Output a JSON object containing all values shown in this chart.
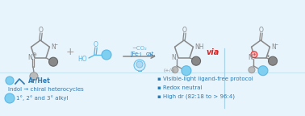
{
  "bg_color": "#e8f4fb",
  "blue_light": "#7ecff0",
  "blue": "#5bb8e8",
  "dark_blue": "#2a7ab5",
  "gray_dark": "#888888",
  "gray_light": "#bbbbbb",
  "bond_color": "#888888",
  "red": "#dd2222",
  "dark_gray": "#666666",
  "bullet1": "▪ Visible-light ligand-free protocol",
  "bullet2": "▪ Redox neutral",
  "bullet3": "▪ High dr (82:18 to > 96:4)",
  "label_arhet": "Ar/Het",
  "label_indol": "Indol → chiral heterocycles",
  "label_alkyl": "1°, 2° and 3° alkyl",
  "ring_r": 12,
  "angles": [
    90,
    18,
    -54,
    -126,
    162
  ]
}
